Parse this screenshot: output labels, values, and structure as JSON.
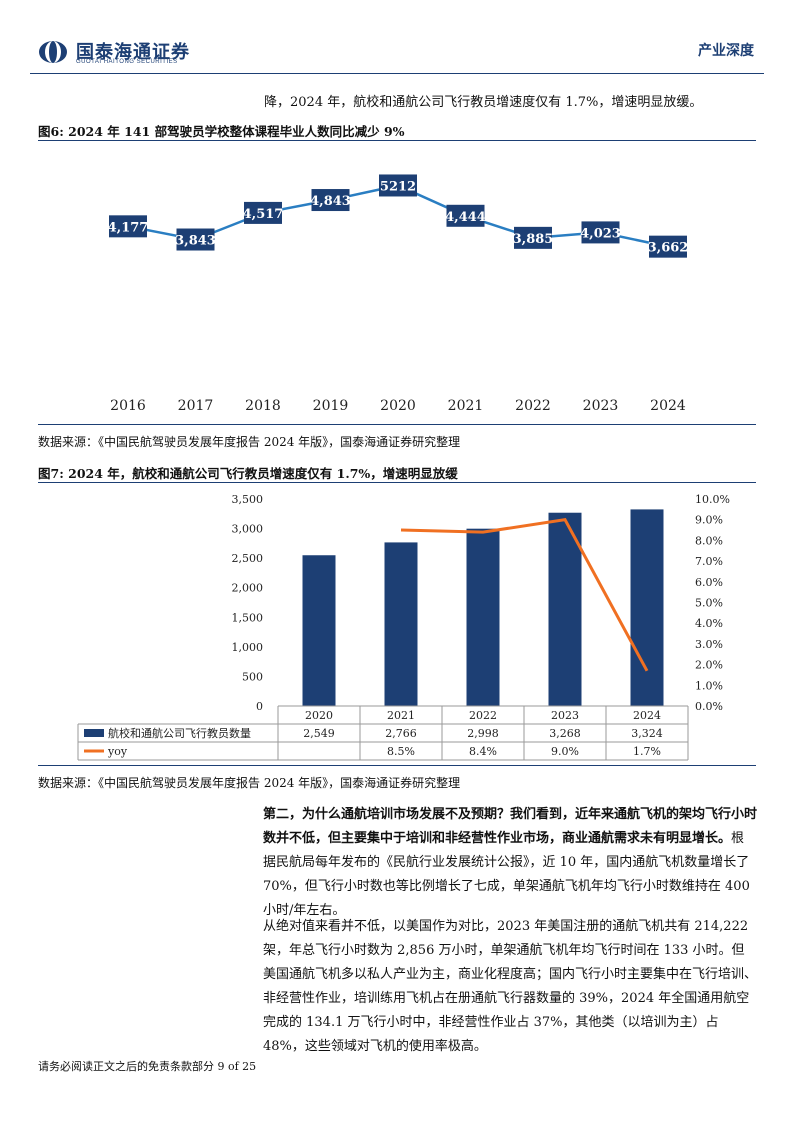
{
  "header": {
    "company_cn": "国泰海通证券",
    "company_en": "GUOTAI HAITONG SECURITIES",
    "doc_type": "产业深度",
    "brand_color": "#1d3f74"
  },
  "intro_line": "降，2024 年，航校和通航公司飞行教员增速度仅有 1.7%，增速明显放缓。",
  "figure6": {
    "title": "图6: 2024 年 141 部驾驶员学校整体课程毕业人数同比减少 9%",
    "source": "数据来源：《中国民航驾驶员发展年度报告 2024 年版》，国泰海通证券研究整理"
  },
  "figure7": {
    "title": "图7: 2024 年，航校和通航公司飞行教员增速度仅有 1.7%，增速明显放缓",
    "source": "数据来源：《中国民航驾驶员发展年度报告 2024 年版》，国泰海通证券研究整理"
  },
  "chart_data": [
    {
      "type": "line",
      "x": [
        "2016",
        "2017",
        "2018",
        "2019",
        "2020",
        "2021",
        "2022",
        "2023",
        "2024"
      ],
      "values": [
        4177,
        3843,
        4517,
        4843,
        5212,
        4444,
        3885,
        4023,
        3662
      ],
      "data_labels": [
        "4,177",
        "3,843",
        "4,517",
        "4,843",
        "5212",
        "4,444",
        "3,885",
        "4,023",
        "3,662"
      ],
      "title": "",
      "grid": false,
      "line_color": "#2a7ec2",
      "label_bg": "#1d3f74"
    },
    {
      "type": "bar",
      "categories": [
        "2020",
        "2021",
        "2022",
        "2023",
        "2024"
      ],
      "series": [
        {
          "name": "航校和通航公司飞行教员数量",
          "type": "bar",
          "values": [
            2549,
            2766,
            2998,
            3268,
            3324
          ],
          "labels": [
            "2,549",
            "2,766",
            "2,998",
            "3,268",
            "3,324"
          ],
          "color": "#1d3f74"
        },
        {
          "name": "yoy",
          "type": "line",
          "axis": "right",
          "values": [
            null,
            8.5,
            8.4,
            9.0,
            1.7
          ],
          "labels": [
            "",
            "8.5%",
            "8.4%",
            "9.0%",
            "1.7%"
          ],
          "color": "#f07022"
        }
      ],
      "ylim": [
        0,
        3500
      ],
      "yticks": [
        "0",
        "500",
        "1,000",
        "1,500",
        "2,000",
        "2,500",
        "3,000",
        "3,500"
      ],
      "y2lim": [
        0,
        10
      ],
      "y2ticks": [
        "0.0%",
        "1.0%",
        "2.0%",
        "3.0%",
        "4.0%",
        "5.0%",
        "6.0%",
        "7.0%",
        "8.0%",
        "9.0%",
        "10.0%"
      ],
      "legend": "table-bottom"
    }
  ],
  "para1": {
    "bold": "第二，为什么通航培训市场发展不及预期？我们看到，近年来通航飞机的架均飞行小时数并不低，但主要集中于培训和非经营性作业市场，商业通航需求未有明显增长。",
    "normal": "根据民航局每年发布的《民航行业发展统计公报》，近 10 年，国内通航飞机数量增长了 70%，但飞行小时数也等比例增长了七成，单架通航飞机年均飞行小时数维持在 400 小时/年左右。"
  },
  "para2": "从绝对值来看并不低，以美国作为对比，2023 年美国注册的通航飞机共有 214,222 架，年总飞行小时数为 2,856 万小时，单架通航飞机年均飞行时间在 133 小时。但美国通航飞机多以私人产业为主，商业化程度高；国内飞行小时主要集中在飞行培训、非经营性作业，培训练用飞机占在册通航飞行器数量的 39%，2024 年全国通用航空完成的 134.1 万飞行小时中，非经营性作业占 37%，其他类（以培训为主）占 48%，这些领域对飞机的使用率极高。",
  "footer": "请务必阅读正文之后的免责条款部分 9 of 25"
}
